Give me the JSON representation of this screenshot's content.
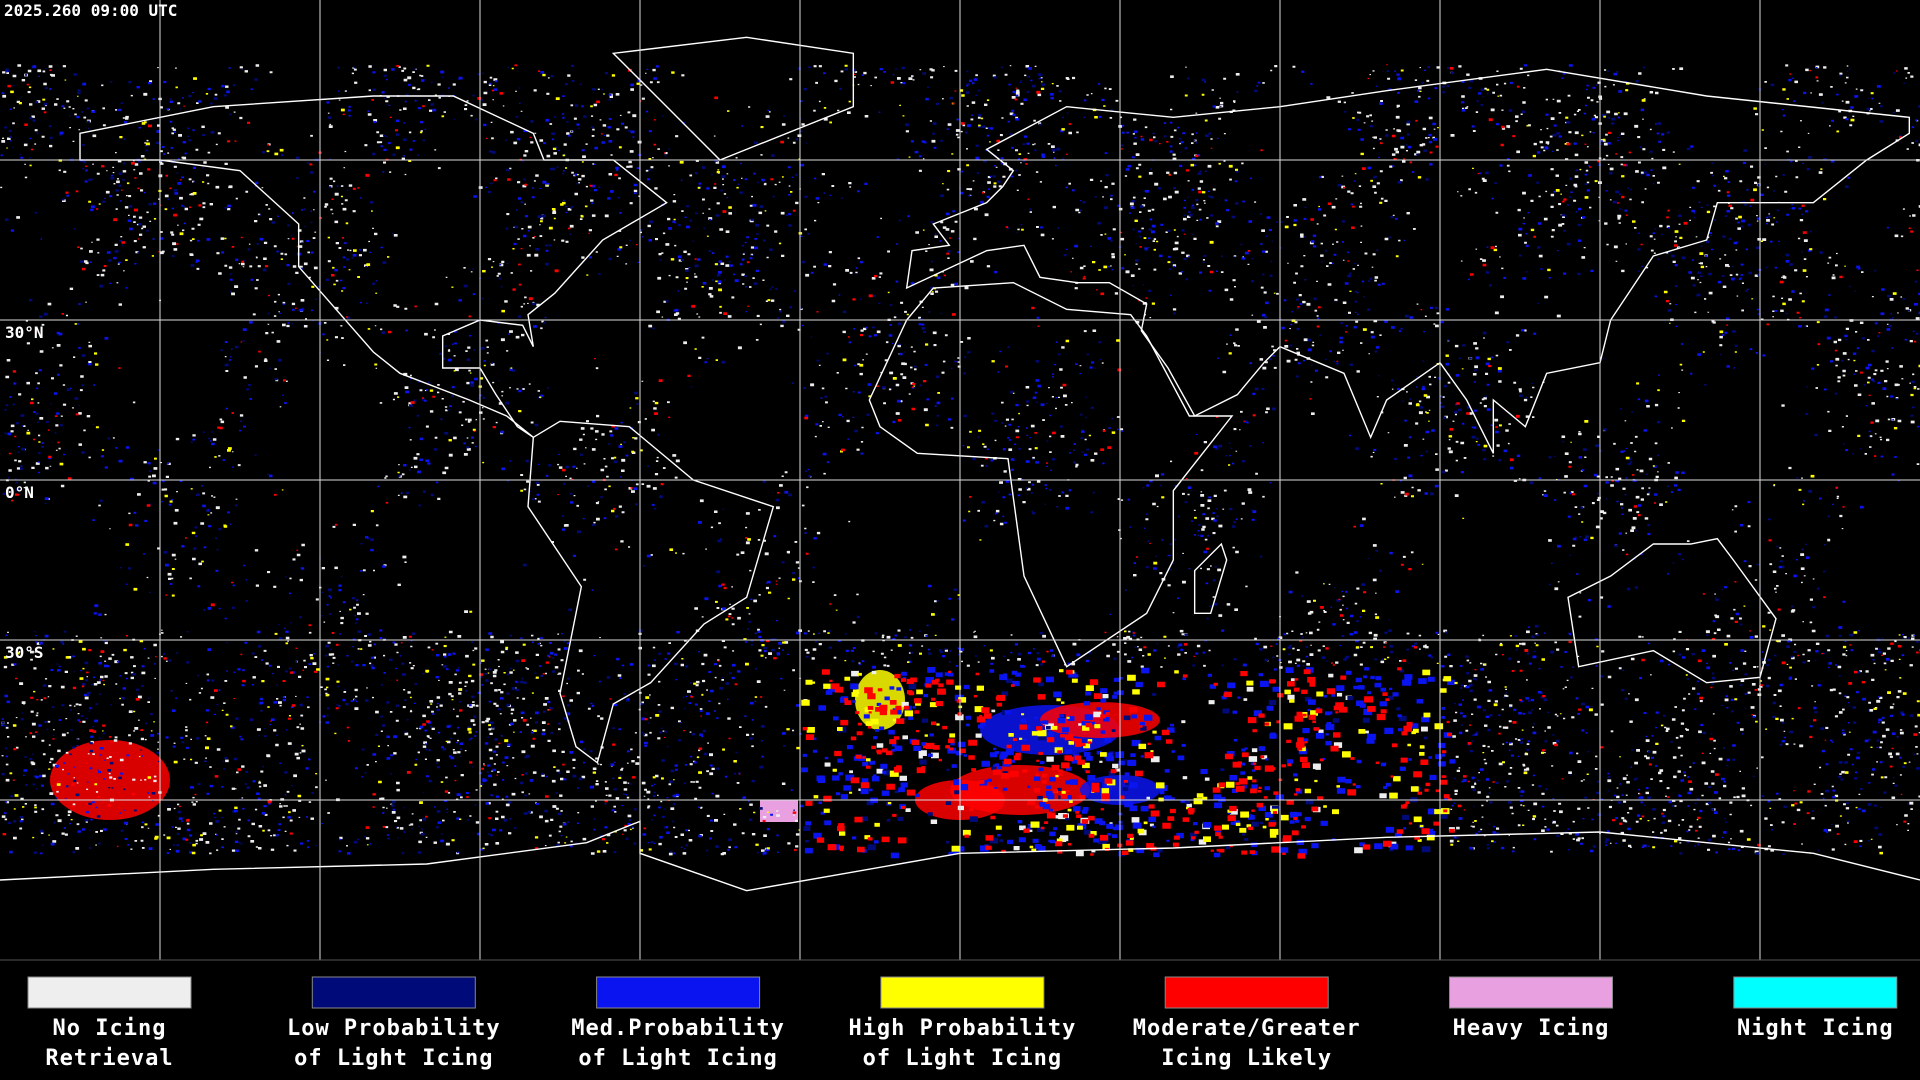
{
  "timestamp": "2025.260 09:00 UTC",
  "latitude_labels": [
    "30°N",
    "0°N",
    "30°S"
  ],
  "legend": [
    {
      "color": "#eeeeee",
      "lines": [
        "No Icing",
        "Retrieval"
      ]
    },
    {
      "color": "#000a78",
      "lines": [
        "Low Probability",
        "of Light Icing"
      ]
    },
    {
      "color": "#0a14f0",
      "lines": [
        "Med.Probability",
        "of Light Icing"
      ]
    },
    {
      "color": "#ffff00",
      "lines": [
        "High Probability",
        "of Light Icing"
      ]
    },
    {
      "color": "#ff0000",
      "lines": [
        "Moderate/Greater",
        "Icing Likely"
      ]
    },
    {
      "color": "#e8a0e0",
      "lines": [
        "Heavy Icing"
      ]
    },
    {
      "color": "#00ffff",
      "lines": [
        "Night Icing"
      ]
    }
  ]
}
